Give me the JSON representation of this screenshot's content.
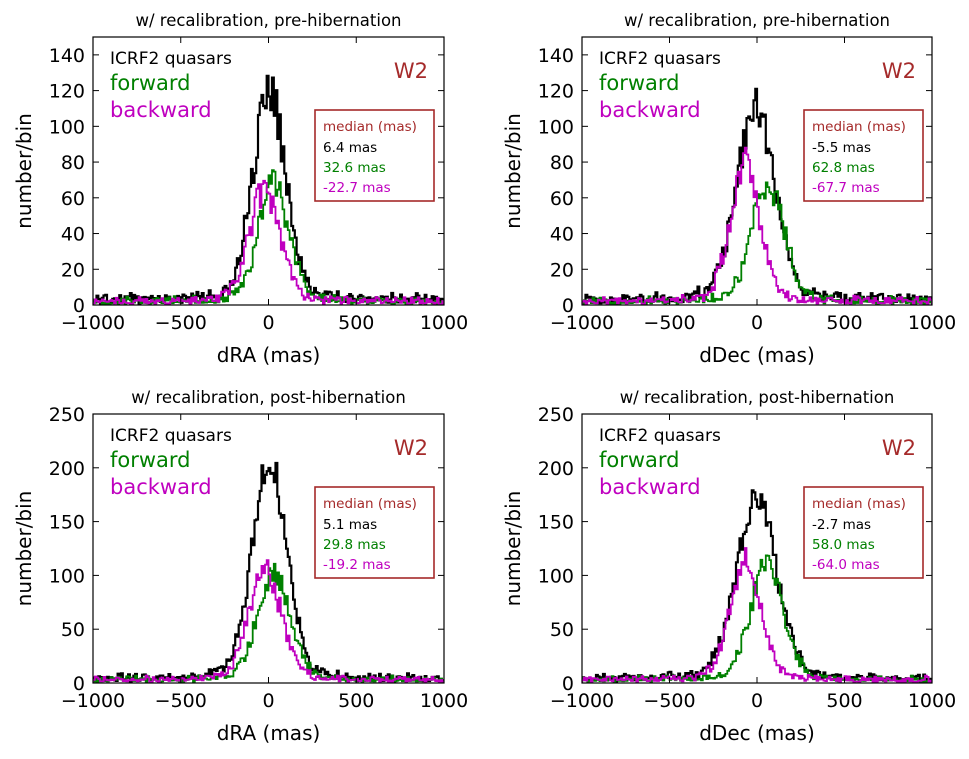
{
  "figure": {
    "series_colors": {
      "all": "#000000",
      "forward": "#008000",
      "backward": "#bf00bf"
    },
    "label_color": "#a52a2a"
  },
  "chart_data": [
    {
      "type": "line",
      "title": "w/ recalibration, pre-hibernation",
      "xlabel": "dRA (mas)",
      "ylabel": "number/bin",
      "xlim": [
        -1000,
        1000
      ],
      "ylim": [
        0,
        150
      ],
      "xticks": [
        -1000,
        -500,
        0,
        500,
        1000
      ],
      "xtick_labels": [
        "−1000",
        "−500",
        "0",
        "500",
        "1000"
      ],
      "yticks": [
        0,
        20,
        40,
        60,
        80,
        100,
        120,
        140
      ],
      "band": "W2",
      "legend": [
        "ICRF2 quasars",
        "forward",
        "backward"
      ],
      "median_box": {
        "title": "median (mas)",
        "values": [
          "6.4 mas",
          "32.6 mas",
          "-22.7 mas"
        ]
      },
      "series": [
        {
          "name": "ICRF2 quasars",
          "center": 6.4,
          "peak": 118,
          "width": 95,
          "tail": 0.18,
          "base": 3
        },
        {
          "name": "forward",
          "center": 32.6,
          "peak": 66,
          "width": 90,
          "tail": 0.2,
          "base": 2
        },
        {
          "name": "backward",
          "center": -22.7,
          "peak": 62,
          "width": 90,
          "tail": 0.2,
          "base": 2
        }
      ]
    },
    {
      "type": "line",
      "title": "w/ recalibration, pre-hibernation",
      "xlabel": "dDec (mas)",
      "ylabel": "number/bin",
      "xlim": [
        -1000,
        1000
      ],
      "ylim": [
        0,
        150
      ],
      "xticks": [
        -1000,
        -500,
        0,
        500,
        1000
      ],
      "xtick_labels": [
        "−1000",
        "−500",
        "0",
        "500",
        "1000"
      ],
      "yticks": [
        0,
        20,
        40,
        60,
        80,
        100,
        120,
        140
      ],
      "band": "W2",
      "legend": [
        "ICRF2 quasars",
        "forward",
        "backward"
      ],
      "median_box": {
        "title": "median (mas)",
        "values": [
          "-5.5 mas",
          "62.8 mas",
          "-67.7 mas"
        ]
      },
      "series": [
        {
          "name": "ICRF2 quasars",
          "center": -5.5,
          "peak": 108,
          "width": 110,
          "tail": 0.2,
          "base": 3
        },
        {
          "name": "forward",
          "center": 62.8,
          "peak": 66,
          "width": 95,
          "tail": 0.2,
          "base": 2
        },
        {
          "name": "backward",
          "center": -67.7,
          "peak": 78,
          "width": 85,
          "tail": 0.2,
          "base": 2
        }
      ]
    },
    {
      "type": "line",
      "title": "w/ recalibration, post-hibernation",
      "xlabel": "dRA (mas)",
      "ylabel": "number/bin",
      "xlim": [
        -1000,
        1000
      ],
      "ylim": [
        0,
        250
      ],
      "xticks": [
        -1000,
        -500,
        0,
        500,
        1000
      ],
      "xtick_labels": [
        "−1000",
        "−500",
        "0",
        "500",
        "1000"
      ],
      "yticks": [
        0,
        50,
        100,
        150,
        200,
        250
      ],
      "band": "W2",
      "legend": [
        "ICRF2 quasars",
        "forward",
        "backward"
      ],
      "median_box": {
        "title": "median (mas)",
        "values": [
          "5.1 mas",
          "29.8 mas",
          "-19.2 mas"
        ]
      },
      "series": [
        {
          "name": "ICRF2 quasars",
          "center": 5.1,
          "peak": 205,
          "width": 100,
          "tail": 0.18,
          "base": 4
        },
        {
          "name": "forward",
          "center": 29.8,
          "peak": 100,
          "width": 95,
          "tail": 0.2,
          "base": 3
        },
        {
          "name": "backward",
          "center": -19.2,
          "peak": 102,
          "width": 95,
          "tail": 0.2,
          "base": 3
        }
      ]
    },
    {
      "type": "line",
      "title": "w/ recalibration, post-hibernation",
      "xlabel": "dDec (mas)",
      "ylabel": "number/bin",
      "xlim": [
        -1000,
        1000
      ],
      "ylim": [
        0,
        250
      ],
      "xticks": [
        -1000,
        -500,
        0,
        500,
        1000
      ],
      "xtick_labels": [
        "−1000",
        "−500",
        "0",
        "500",
        "1000"
      ],
      "yticks": [
        0,
        50,
        100,
        150,
        200,
        250
      ],
      "band": "W2",
      "legend": [
        "ICRF2 quasars",
        "forward",
        "backward"
      ],
      "median_box": {
        "title": "median (mas)",
        "values": [
          "-2.7 mas",
          "58.0 mas",
          "-64.0 mas"
        ]
      },
      "series": [
        {
          "name": "ICRF2 quasars",
          "center": -2.7,
          "peak": 170,
          "width": 115,
          "tail": 0.2,
          "base": 4
        },
        {
          "name": "forward",
          "center": 58.0,
          "peak": 112,
          "width": 95,
          "tail": 0.2,
          "base": 3
        },
        {
          "name": "backward",
          "center": -64.0,
          "peak": 112,
          "width": 90,
          "tail": 0.2,
          "base": 3
        }
      ]
    }
  ]
}
